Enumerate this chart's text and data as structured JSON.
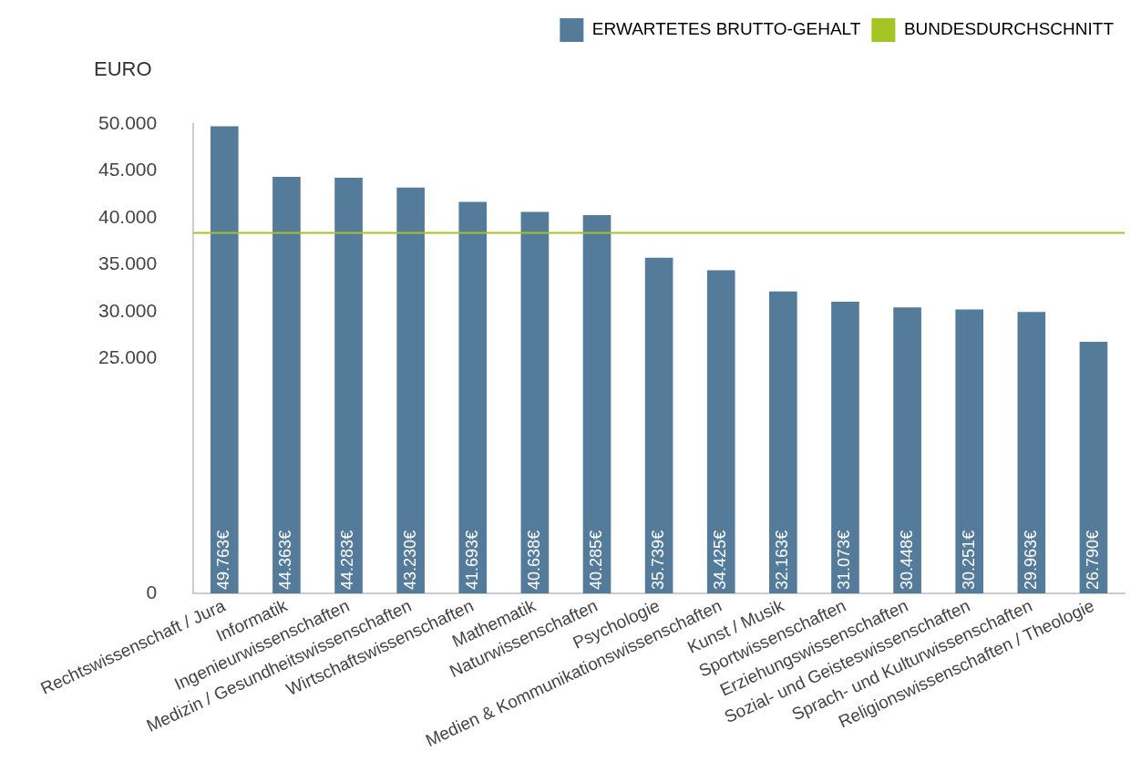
{
  "chart_data": {
    "type": "bar",
    "ylabel": "EURO",
    "categories": [
      "Rechtswissenschaft / Jura",
      "Informatik",
      "Ingenieurwissenschaften",
      "Medizin / Gesundheitswissenschaften",
      "Wirtschaftswissenschaften",
      "Mathematik",
      "Naturwissenschaften",
      "Psychologie",
      "Medien & Kommunikationswissenschaften",
      "Kunst / Musik",
      "Sportwissenschaften",
      "Erziehungswissenschaften",
      "Sozial- und Geisteswissenschaften",
      "Sprach- und Kulturwissenschaften",
      "Religionswissenschaften / Theologie"
    ],
    "series": [
      {
        "name": "ERWARTETES BRUTTO-GEHALT",
        "color": "#557b9b",
        "values": [
          49763,
          44363,
          44283,
          43230,
          41693,
          40638,
          40285,
          35739,
          34425,
          32163,
          31073,
          30448,
          30251,
          29963,
          26790
        ],
        "value_labels": [
          "49.763€",
          "44.363€",
          "44.283€",
          "43.230€",
          "41.693€",
          "40.638€",
          "40.285€",
          "35.739€",
          "34.425€",
          "32.163€",
          "31.073€",
          "30.448€",
          "30.251€",
          "29.963€",
          "26.790€"
        ]
      }
    ],
    "ylim": [
      0,
      50000
    ],
    "yticks": [
      0,
      {
        "value": 25000,
        "label": "25.000"
      },
      {
        "value": 30000,
        "label": "30.000"
      },
      {
        "value": 35000,
        "label": "35.000"
      },
      {
        "value": 40000,
        "label": "40.000"
      },
      {
        "value": 45000,
        "label": "45.000"
      },
      {
        "value": 50000,
        "label": "50.000"
      }
    ],
    "ref_lines": [
      {
        "axis": "y",
        "value": 38400,
        "label": "BUNDESDURCHSCHNITT",
        "color": "#a4c424"
      }
    ],
    "legend": "top right",
    "grid": false
  }
}
